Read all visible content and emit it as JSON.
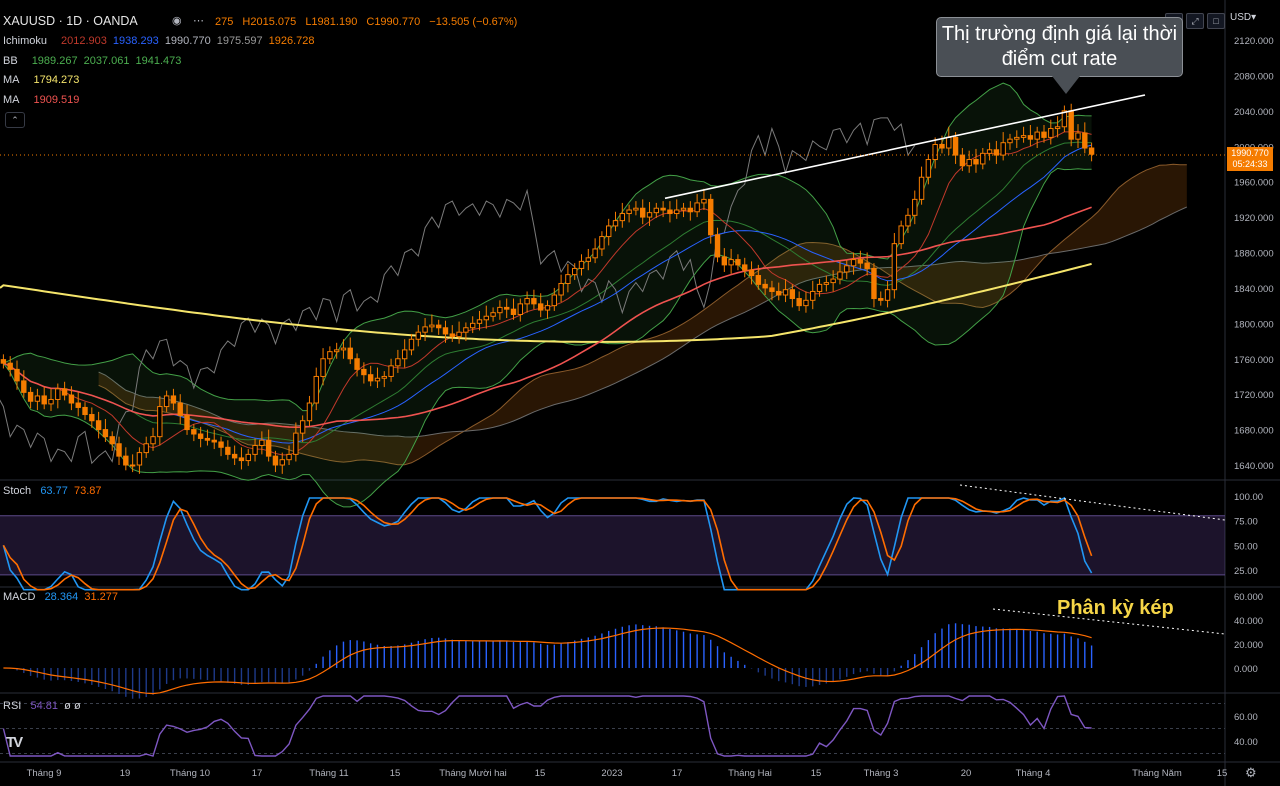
{
  "header": {
    "symbol": "XAUUSD · 1D · OANDA",
    "ohlc": {
      "o_partial": "275",
      "h": "H2015.075",
      "l": "L1981.190",
      "c": "C1990.770",
      "chg": "−13.505 (−0.67%)"
    },
    "currency_button": "USD",
    "more_icon": "ellipsis-icon",
    "eye_icon": "eye-icon"
  },
  "indicators": [
    {
      "name": "Ichimoku",
      "values": [
        {
          "v": "2012.903",
          "color": "#c0392b"
        },
        {
          "v": "1938.293",
          "color": "#2962ff"
        },
        {
          "v": "1990.770",
          "color": "#b2b5be"
        },
        {
          "v": "1975.597",
          "color": "#9a9a9a"
        },
        {
          "v": "1926.728",
          "color": "#f57c00"
        }
      ]
    },
    {
      "name": "BB",
      "values": [
        {
          "v": "1989.267",
          "color": "#4caf50"
        },
        {
          "v": "2037.061",
          "color": "#4caf50"
        },
        {
          "v": "1941.473",
          "color": "#4caf50"
        }
      ]
    },
    {
      "name": "MA",
      "values": [
        {
          "v": "1794.273",
          "color": "#f5e56b"
        }
      ]
    },
    {
      "name": "MA",
      "values": [
        {
          "v": "1909.519",
          "color": "#ef5350"
        }
      ]
    }
  ],
  "price_axis": {
    "labels": [
      "2120.000",
      "2080.000",
      "2040.000",
      "2000.000",
      "1960.000",
      "1920.000",
      "1880.000",
      "1840.000",
      "1800.000",
      "1760.000",
      "1720.000",
      "1680.000",
      "1640.000"
    ],
    "current": "1990.770",
    "countdown": "05:24:33"
  },
  "stoch_pane": {
    "label": "Stoch",
    "k": "63.77",
    "d": "73.87",
    "k_color": "#2196f3",
    "d_color": "#ff6d00",
    "axis": [
      "100.00",
      "75.00",
      "50.00",
      "25.00"
    ]
  },
  "macd_pane": {
    "label": "MACD",
    "macd": "28.364",
    "signal": "31.277",
    "macd_color": "#2196f3",
    "signal_color": "#ff6d00",
    "axis": [
      "60.000",
      "40.000",
      "20.000",
      "0.000"
    ]
  },
  "rsi_pane": {
    "label": "RSI",
    "value": "54.81",
    "extra": "ø ø",
    "color": "#7e57c2",
    "axis": [
      "60.00",
      "40.00"
    ]
  },
  "time_axis": [
    "Tháng 9",
    "19",
    "Tháng 10",
    "17",
    "Tháng 11",
    "15",
    "Tháng Mười hai",
    "15",
    "2023",
    "17",
    "Tháng Hai",
    "15",
    "Tháng 3",
    "20",
    "Tháng 4",
    "Tháng Năm",
    "15"
  ],
  "annotations": {
    "callout": "Thị trường định giá lại thời điểm cut rate",
    "divergence": "Phân kỳ kép"
  },
  "logo": "TV",
  "chart_data": {
    "type": "candlestick",
    "symbol": "XAUUSD",
    "timeframe": "1D",
    "ylim": [
      1620,
      2140
    ],
    "close_series": [
      1755,
      1748,
      1735,
      1722,
      1712,
      1718,
      1709,
      1714,
      1726,
      1719,
      1710,
      1705,
      1697,
      1690,
      1680,
      1672,
      1664,
      1650,
      1640,
      1640,
      1654,
      1664,
      1672,
      1706,
      1718,
      1710,
      1696,
      1680,
      1675,
      1670,
      1668,
      1666,
      1660,
      1652,
      1648,
      1645,
      1652,
      1662,
      1668,
      1650,
      1640,
      1646,
      1652,
      1676,
      1690,
      1710,
      1740,
      1760,
      1768,
      1770,
      1772,
      1760,
      1748,
      1742,
      1735,
      1738,
      1740,
      1752,
      1760,
      1770,
      1782,
      1790,
      1796,
      1798,
      1795,
      1788,
      1785,
      1790,
      1795,
      1800,
      1804,
      1808,
      1812,
      1818,
      1816,
      1810,
      1822,
      1828,
      1822,
      1815,
      1820,
      1832,
      1845,
      1855,
      1862,
      1870,
      1874,
      1884,
      1898,
      1910,
      1916,
      1924,
      1928,
      1930,
      1920,
      1925,
      1930,
      1928,
      1924,
      1928,
      1930,
      1926,
      1936,
      1940,
      1900,
      1875,
      1866,
      1872,
      1866,
      1860,
      1854,
      1844,
      1840,
      1836,
      1832,
      1838,
      1828,
      1820,
      1826,
      1836,
      1844,
      1846,
      1850,
      1858,
      1865,
      1872,
      1868,
      1862,
      1828,
      1826,
      1838,
      1890,
      1910,
      1922,
      1940,
      1965,
      1985,
      2002,
      1998,
      2010,
      1990,
      1978,
      1985,
      1980,
      1992,
      1996,
      1990,
      2004,
      2008,
      2010,
      2012,
      2008,
      2016,
      2010,
      2020,
      2022,
      2040,
      2008,
      2015,
      1998,
      1991
    ],
    "resistance_line": {
      "from": 1922,
      "to": 2062
    }
  }
}
